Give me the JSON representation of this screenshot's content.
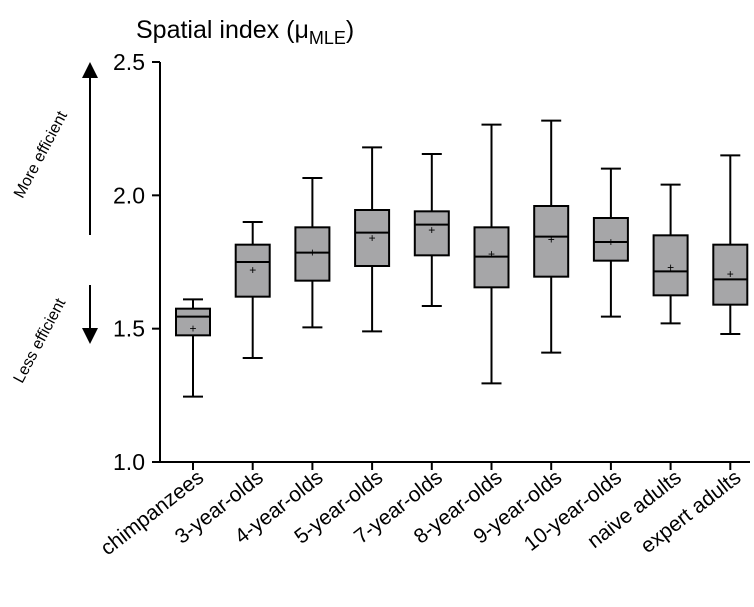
{
  "chart_data": {
    "type": "box",
    "title": "Spatial index (μMLE)",
    "title_main": "Spatial index (",
    "title_mu": "μ",
    "title_sub": "MLE",
    "title_close": ")",
    "xlabel": "",
    "ylabel": "",
    "ylim": [
      1.0,
      2.5
    ],
    "yticks": [
      1.0,
      1.5,
      2.0,
      2.5
    ],
    "ytick_labels": [
      "1.0",
      "1.5",
      "2.0",
      "2.5"
    ],
    "grid": false,
    "annotations": {
      "top_arrow_label": "More efficient",
      "bottom_arrow_label": "Less efficient"
    },
    "colors": {
      "box_fill": "#a6a6a8",
      "line": "#000000",
      "background": "#ffffff"
    },
    "categories": [
      "chimpanzees",
      "3-year-olds",
      "4-year-olds",
      "5-year-olds",
      "7-year-olds",
      "8-year-olds",
      "9-year-olds",
      "10-year-olds",
      "naive adults",
      "expert adults"
    ],
    "boxes": [
      {
        "min": 1.245,
        "q1": 1.475,
        "median": 1.545,
        "q3": 1.575,
        "max": 1.61,
        "mean": 1.5
      },
      {
        "min": 1.39,
        "q1": 1.62,
        "median": 1.75,
        "q3": 1.815,
        "max": 1.9,
        "mean": 1.72
      },
      {
        "min": 1.505,
        "q1": 1.68,
        "median": 1.785,
        "q3": 1.88,
        "max": 2.065,
        "mean": 1.785
      },
      {
        "min": 1.49,
        "q1": 1.735,
        "median": 1.86,
        "q3": 1.945,
        "max": 2.18,
        "mean": 1.84
      },
      {
        "min": 1.585,
        "q1": 1.775,
        "median": 1.89,
        "q3": 1.94,
        "max": 2.155,
        "mean": 1.87
      },
      {
        "min": 1.295,
        "q1": 1.655,
        "median": 1.77,
        "q3": 1.88,
        "max": 2.265,
        "mean": 1.78
      },
      {
        "min": 1.41,
        "q1": 1.695,
        "median": 1.845,
        "q3": 1.96,
        "max": 2.28,
        "mean": 1.835
      },
      {
        "min": 1.545,
        "q1": 1.755,
        "median": 1.825,
        "q3": 1.915,
        "max": 2.1,
        "mean": 1.825
      },
      {
        "min": 1.52,
        "q1": 1.625,
        "median": 1.715,
        "q3": 1.85,
        "max": 2.04,
        "mean": 1.73
      },
      {
        "min": 1.48,
        "q1": 1.59,
        "median": 1.685,
        "q3": 1.815,
        "max": 2.15,
        "mean": 1.705
      }
    ]
  }
}
